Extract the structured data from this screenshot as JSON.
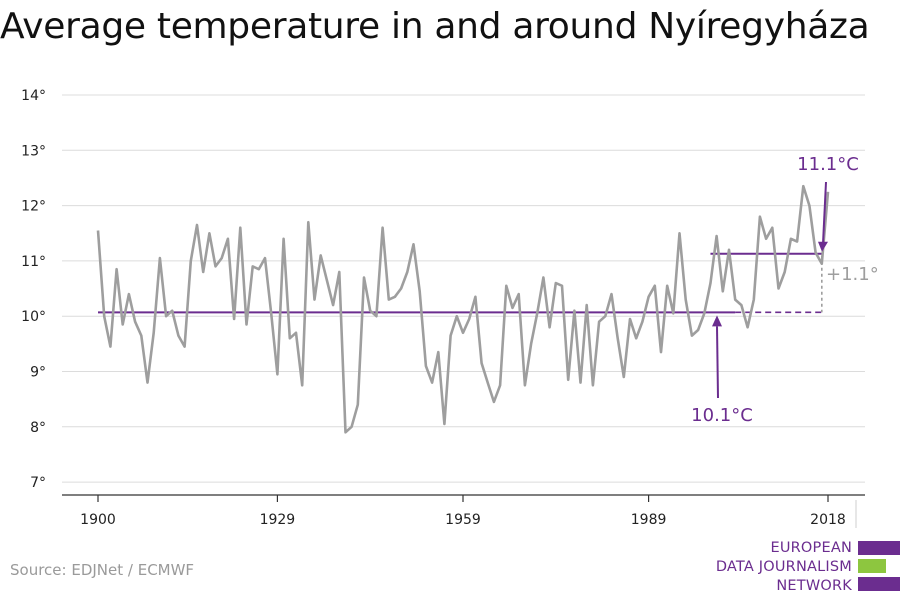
{
  "title": "Average temperature in and around Nyíregyháza",
  "source": "Source: EDJNet / ECMWF",
  "logo": {
    "lines": [
      "EUROPEAN",
      "DATA JOURNALISM",
      "NETWORK"
    ],
    "colors": [
      "#6b2d8f",
      "#8dc63f",
      "#6b2d8f"
    ]
  },
  "colors": {
    "series": "#9e9e9e",
    "accent": "#6b2d8f",
    "grid": "#dcdcdc",
    "axis": "#333333"
  },
  "chart_data": {
    "type": "line",
    "title": "Average temperature in and around Nyíregyháza",
    "xlabel": "",
    "ylabel": "",
    "x_ticks": [
      1900,
      1929,
      1959,
      1989,
      2018
    ],
    "y_ticks": [
      "7°",
      "8°",
      "9°",
      "10°",
      "11°",
      "12°",
      "13°",
      "14°"
    ],
    "y_tick_values": [
      7,
      8,
      9,
      10,
      11,
      12,
      13,
      14
    ],
    "ylim": [
      6.7,
      14.2
    ],
    "xlim": [
      1894,
      2024
    ],
    "grid": true,
    "series": [
      {
        "x": [
          1900,
          1901,
          1902,
          1903,
          1904,
          1905,
          1906,
          1907,
          1908,
          1909,
          1910,
          1911,
          1912,
          1913,
          1914,
          1915,
          1916,
          1917,
          1918,
          1919,
          1920,
          1921,
          1922,
          1923,
          1924,
          1925,
          1926,
          1927,
          1928,
          1929,
          1930,
          1931,
          1932,
          1933,
          1934,
          1935,
          1936,
          1937,
          1938,
          1939,
          1940,
          1941,
          1942,
          1943,
          1944,
          1945,
          1946,
          1947,
          1948,
          1949,
          1950,
          1951,
          1952,
          1953,
          1954,
          1955,
          1956,
          1957,
          1958,
          1959,
          1960,
          1961,
          1962,
          1963,
          1964,
          1965,
          1966,
          1967,
          1968,
          1969,
          1970,
          1971,
          1972,
          1973,
          1974,
          1975,
          1976,
          1977,
          1978,
          1979,
          1980,
          1981,
          1982,
          1983,
          1984,
          1985,
          1986,
          1987,
          1988,
          1989,
          1990,
          1991,
          1992,
          1993,
          1994,
          1995,
          1996,
          1997,
          1998,
          1999,
          2000,
          2001,
          2002,
          2003,
          2004,
          2005,
          2006,
          2007,
          2008,
          2009,
          2010,
          2011,
          2012,
          2013,
          2014,
          2015,
          2016,
          2017,
          2018
        ],
        "values": [
          11.55,
          10.0,
          9.45,
          10.85,
          9.85,
          10.4,
          9.9,
          9.65,
          8.8,
          9.7,
          11.05,
          10.0,
          10.1,
          9.65,
          9.45,
          11.0,
          11.65,
          10.8,
          11.5,
          10.9,
          11.05,
          11.4,
          9.95,
          11.6,
          9.85,
          10.9,
          10.85,
          11.05,
          10.05,
          8.95,
          11.4,
          9.6,
          9.7,
          8.75,
          11.7,
          10.3,
          11.1,
          10.65,
          10.2,
          10.8,
          7.9,
          8.0,
          8.4,
          10.7,
          10.1,
          10.0,
          11.6,
          10.3,
          10.35,
          10.5,
          10.8,
          11.3,
          10.45,
          9.1,
          8.8,
          9.35,
          8.05,
          9.65,
          10.0,
          9.7,
          9.95,
          10.35,
          9.15,
          8.8,
          8.45,
          8.75,
          10.55,
          10.15,
          10.4,
          8.75,
          9.5,
          10.05,
          10.7,
          9.8,
          10.6,
          10.55,
          8.85,
          10.1,
          8.8,
          10.2,
          8.75,
          9.9,
          10.0,
          10.4,
          9.6,
          8.9,
          9.95,
          9.6,
          9.9,
          10.35,
          10.55,
          9.35,
          10.55,
          10.05,
          11.5,
          10.3,
          9.65,
          9.75,
          10.05,
          10.6,
          11.45,
          10.45,
          11.2,
          10.3,
          10.2,
          9.8,
          10.3,
          11.8,
          11.4,
          11.6,
          10.5,
          10.8,
          11.4,
          11.35,
          12.35,
          12.0,
          11.15,
          10.95,
          12.25
        ]
      }
    ],
    "reference_line": {
      "value": 10.07,
      "label": "10.1°C"
    },
    "recent_average": {
      "value": 11.13,
      "label": "11.1°C"
    },
    "difference_label": "+1.1°"
  }
}
